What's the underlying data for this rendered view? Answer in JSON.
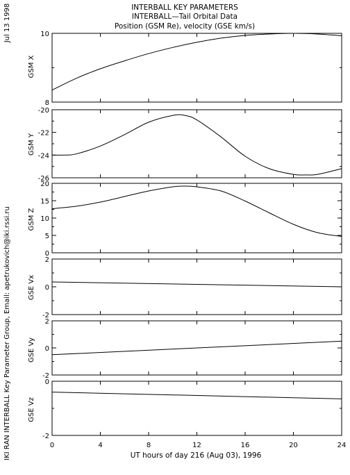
{
  "header": {
    "line1": "INTERBALL KEY PARAMETERS",
    "line2": "INTERBALL—Tail Orbital Data",
    "line3": "Position (GSM Re), velocity (GSE km/s)"
  },
  "side": {
    "date": "Jul 13 1998",
    "credit": "IKI RAN INTERBALL Key Parameter Group, Email: apetrukovich@iki.rssi.ru"
  },
  "chart_data": {
    "type": "line",
    "xlabel": "UT hours of day 216 (Aug 03), 1996",
    "xlim": [
      0,
      24
    ],
    "xticks": [
      0,
      4,
      8,
      12,
      16,
      20,
      24
    ],
    "xtick_labels": [
      "0",
      "4",
      "8",
      "12",
      "16",
      "20",
      "24"
    ],
    "panels": [
      {
        "ylabel": "GSM X",
        "ylim": [
          8,
          10
        ],
        "yticks": [
          8,
          10
        ],
        "ytick_labels": [
          "8",
          "10"
        ],
        "x": [
          0,
          2,
          4,
          6,
          8,
          10,
          12,
          14,
          16,
          18,
          20,
          22,
          24
        ],
        "y": [
          8.35,
          8.69,
          8.97,
          9.2,
          9.41,
          9.59,
          9.74,
          9.86,
          9.94,
          9.98,
          10.0,
          9.98,
          9.93
        ]
      },
      {
        "ylabel": "GSM Y",
        "ylim": [
          -26,
          -20
        ],
        "yticks": [
          -26,
          -24,
          -22,
          -20
        ],
        "ytick_labels": [
          "-26",
          "-24",
          "-22",
          "-20"
        ],
        "x": [
          0,
          1,
          2,
          4,
          6,
          8,
          10,
          11,
          12,
          14,
          16,
          18,
          20,
          21,
          22,
          24
        ],
        "y": [
          -24.0,
          -24.0,
          -23.9,
          -23.2,
          -22.2,
          -21.1,
          -20.5,
          -20.5,
          -20.9,
          -22.4,
          -24.1,
          -25.2,
          -25.7,
          -25.75,
          -25.7,
          -25.2
        ]
      },
      {
        "ylabel": "GSM Z",
        "ylim": [
          0,
          20
        ],
        "yticks": [
          0,
          5,
          10,
          15,
          20
        ],
        "ytick_labels": [
          "0",
          "5",
          "10",
          "15",
          "20"
        ],
        "x": [
          0,
          2,
          4,
          6,
          8,
          10,
          11,
          12,
          14,
          16,
          18,
          20,
          22,
          24
        ],
        "y": [
          12.7,
          13.4,
          14.6,
          16.2,
          17.8,
          19.0,
          19.2,
          19.0,
          17.8,
          14.9,
          11.5,
          8.2,
          5.8,
          4.7
        ]
      },
      {
        "ylabel": "GSE Vx",
        "ylim": [
          -2,
          2
        ],
        "yticks": [
          -2,
          0,
          2
        ],
        "ytick_labels": [
          "-2",
          "0",
          "2"
        ],
        "x": [
          0,
          24
        ],
        "y": [
          0.35,
          0.0
        ]
      },
      {
        "ylabel": "GSE Vy",
        "ylim": [
          -2,
          2
        ],
        "yticks": [
          -2,
          0,
          2
        ],
        "ytick_labels": [
          "-2",
          "0",
          "2"
        ],
        "x": [
          0,
          24
        ],
        "y": [
          -0.5,
          0.5
        ]
      },
      {
        "ylabel": "GSE Vz",
        "ylim": [
          -2,
          0
        ],
        "yticks": [
          -2,
          0
        ],
        "ytick_labels": [
          "-2",
          "0"
        ],
        "x": [
          0,
          24
        ],
        "y": [
          -0.4,
          -0.65
        ]
      }
    ]
  }
}
